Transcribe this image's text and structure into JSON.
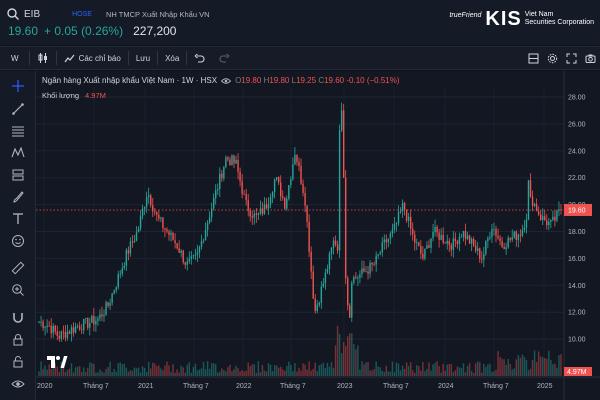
{
  "header": {
    "symbol": "EIB",
    "exchange": "HOSE",
    "description": "NH TMCP Xuất Nhập Khẩu VN",
    "price": "19.60",
    "change": "+ 0.05 (0.26%)",
    "volume": "227,200",
    "logo": {
      "tagline": "trueFriend",
      "brand": "KIS",
      "line1": "Viet Nam",
      "line2": "Securities Corporation"
    }
  },
  "toolbar": {
    "interval": "W",
    "indicators": "Các chỉ báo",
    "save": "Lưu",
    "delete": "Xóa"
  },
  "chart_legend": {
    "title": "Ngân hàng Xuất nhập khẩu Việt Nam · 1W · HSX",
    "o_label": "O",
    "o": "19.80",
    "h_label": "H",
    "h": "19.80",
    "l_label": "L",
    "l": "19.25",
    "c_label": "C",
    "c": "19.60",
    "chg": "-0.10 (−0.51%)",
    "volume_label": "Khối lượng",
    "volume_value": "4.97M"
  },
  "colors": {
    "up": "#26a69a",
    "down": "#ef5350",
    "accent": "#2962ff"
  },
  "chart_data": {
    "type": "candlestick",
    "interval": "1W",
    "ylim": [
      8.5,
      29
    ],
    "y_ticks": [
      "28.00",
      "26.00",
      "24.00",
      "22.00",
      "20.00",
      "18.00",
      "16.00",
      "14.00",
      "12.00",
      "10.00"
    ],
    "last_price_label": "19.60",
    "last_volume_label": "4.97M",
    "x_ticks": [
      "2020",
      "Tháng 7",
      "2021",
      "Tháng 7",
      "2022",
      "Tháng 7",
      "2023",
      "Tháng 7",
      "2024",
      "Tháng 7",
      "2025"
    ],
    "close_path_approx": [
      [
        "2020-01",
        11.3
      ],
      [
        "2020-03",
        11.0
      ],
      [
        "2020-04",
        10.2
      ],
      [
        "2020-05",
        10.6
      ],
      [
        "2020-07",
        11.0
      ],
      [
        "2020-10",
        11.2
      ],
      [
        "2020-12",
        11.5
      ],
      [
        "2021-01",
        12.5
      ],
      [
        "2021-02",
        14.5
      ],
      [
        "2021-04",
        16.5
      ],
      [
        "2021-05",
        18.0
      ],
      [
        "2021-06",
        21.0
      ],
      [
        "2021-07",
        19.0
      ],
      [
        "2021-08",
        18.0
      ],
      [
        "2021-09",
        17.0
      ],
      [
        "2021-10",
        15.5
      ],
      [
        "2021-11",
        16.0
      ],
      [
        "2021-12",
        18.5
      ],
      [
        "2022-01",
        21.0
      ],
      [
        "2022-03",
        23.5
      ],
      [
        "2022-04",
        23.0
      ],
      [
        "2022-05",
        20.0
      ],
      [
        "2022-06",
        19.0
      ],
      [
        "2022-07",
        19.8
      ],
      [
        "2022-08",
        22.0
      ],
      [
        "2022-09",
        20.0
      ],
      [
        "2022-10",
        24.0
      ],
      [
        "2022-11",
        20.5
      ],
      [
        "2022-11b",
        12.0
      ],
      [
        "2022-12",
        14.5
      ],
      [
        "2023-01",
        17.5
      ],
      [
        "2023-02",
        15.0
      ],
      [
        "2023-03",
        14.5
      ],
      [
        "2023-04",
        15.0
      ],
      [
        "2023-05",
        15.5
      ],
      [
        "2023-06",
        17.0
      ],
      [
        "2023-07",
        18.0
      ],
      [
        "2023-08",
        20.0
      ],
      [
        "2023-09",
        17.5
      ],
      [
        "2023-10",
        16.0
      ],
      [
        "2023-11",
        18.0
      ],
      [
        "2023-12",
        17.5
      ],
      [
        "2024-01",
        17.0
      ],
      [
        "2024-02",
        18.0
      ],
      [
        "2024-03",
        17.0
      ],
      [
        "2024-04",
        16.0
      ],
      [
        "2024-05",
        18.5
      ],
      [
        "2024-06",
        17.0
      ],
      [
        "2024-07",
        17.5
      ],
      [
        "2024-08",
        18.0
      ],
      [
        "2024-09",
        20.5
      ],
      [
        "2024-10",
        19.0
      ],
      [
        "2024-11",
        18.5
      ],
      [
        "2024-12",
        19.6
      ]
    ]
  }
}
